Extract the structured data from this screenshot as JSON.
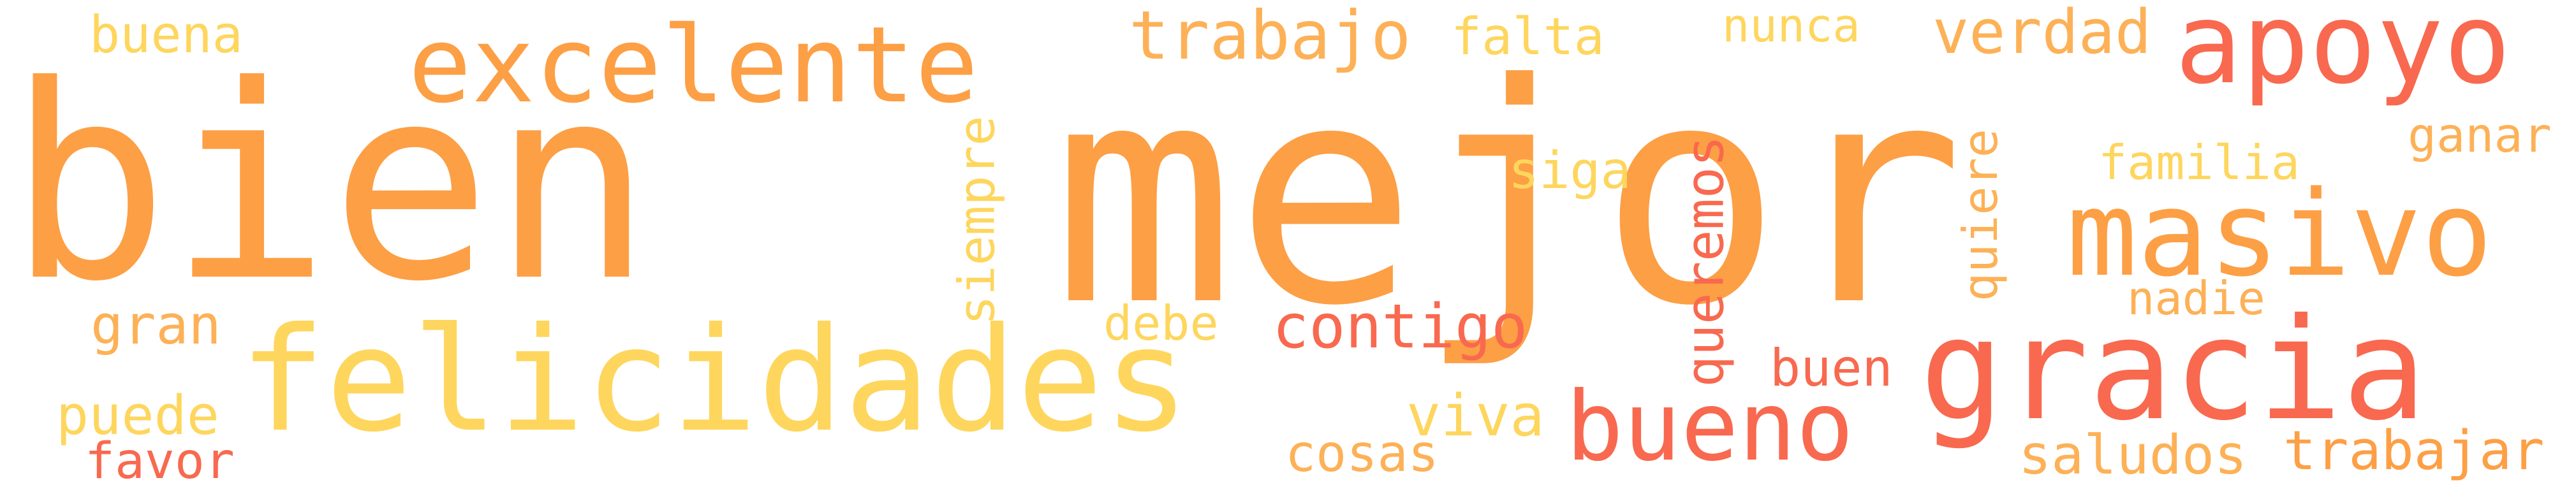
{
  "palette": {
    "orange": "#fd9f45",
    "light_orange": "#fdb157",
    "yellow": "#fed65e",
    "red": "#f8694f",
    "background": "#ffffff"
  },
  "words": [
    {
      "id": "bien",
      "text": "bien",
      "color": "#fd9f45"
    },
    {
      "id": "mejor",
      "text": "mejor",
      "color": "#fd9f45"
    },
    {
      "id": "excelente",
      "text": "excelente",
      "color": "#fd9f45"
    },
    {
      "id": "apoyo",
      "text": "apoyo",
      "color": "#f8694f"
    },
    {
      "id": "masivo",
      "text": "masivo",
      "color": "#fd9f45"
    },
    {
      "id": "felicidades",
      "text": "felicidades",
      "color": "#fed65e"
    },
    {
      "id": "gracia",
      "text": "gracia",
      "color": "#f8694f"
    },
    {
      "id": "bueno",
      "text": "bueno",
      "color": "#f8694f"
    },
    {
      "id": "trabajo",
      "text": "trabajo",
      "color": "#fdb157"
    },
    {
      "id": "falta",
      "text": "falta",
      "color": "#fed65e"
    },
    {
      "id": "nunca",
      "text": "nunca",
      "color": "#fed65e"
    },
    {
      "id": "verdad",
      "text": "verdad",
      "color": "#fdb157"
    },
    {
      "id": "buena",
      "text": "buena",
      "color": "#fed65e"
    },
    {
      "id": "siga",
      "text": "siga",
      "color": "#fed65e"
    },
    {
      "id": "siempre",
      "text": "siempre",
      "color": "#fed65e"
    },
    {
      "id": "queremos",
      "text": "queremos",
      "color": "#f8694f"
    },
    {
      "id": "quiere",
      "text": "quiere",
      "color": "#fdb157"
    },
    {
      "id": "familia",
      "text": "familia",
      "color": "#fed65e"
    },
    {
      "id": "ganar",
      "text": "ganar",
      "color": "#fdb157"
    },
    {
      "id": "nadie",
      "text": "nadie",
      "color": "#fdb157"
    },
    {
      "id": "debe",
      "text": "debe",
      "color": "#fed65e"
    },
    {
      "id": "contigo",
      "text": "contigo",
      "color": "#f8694f"
    },
    {
      "id": "gran",
      "text": "gran",
      "color": "#fdb157"
    },
    {
      "id": "puede",
      "text": "puede",
      "color": "#fed65e"
    },
    {
      "id": "favor",
      "text": "favor",
      "color": "#f8694f"
    },
    {
      "id": "viva",
      "text": "viva",
      "color": "#fed65e"
    },
    {
      "id": "cosas",
      "text": "cosas",
      "color": "#fdb157"
    },
    {
      "id": "buen",
      "text": "buen",
      "color": "#f8694f"
    },
    {
      "id": "saludos",
      "text": "saludos",
      "color": "#fdb157"
    },
    {
      "id": "trabajar",
      "text": "trabajar",
      "color": "#fd9f45"
    }
  ]
}
